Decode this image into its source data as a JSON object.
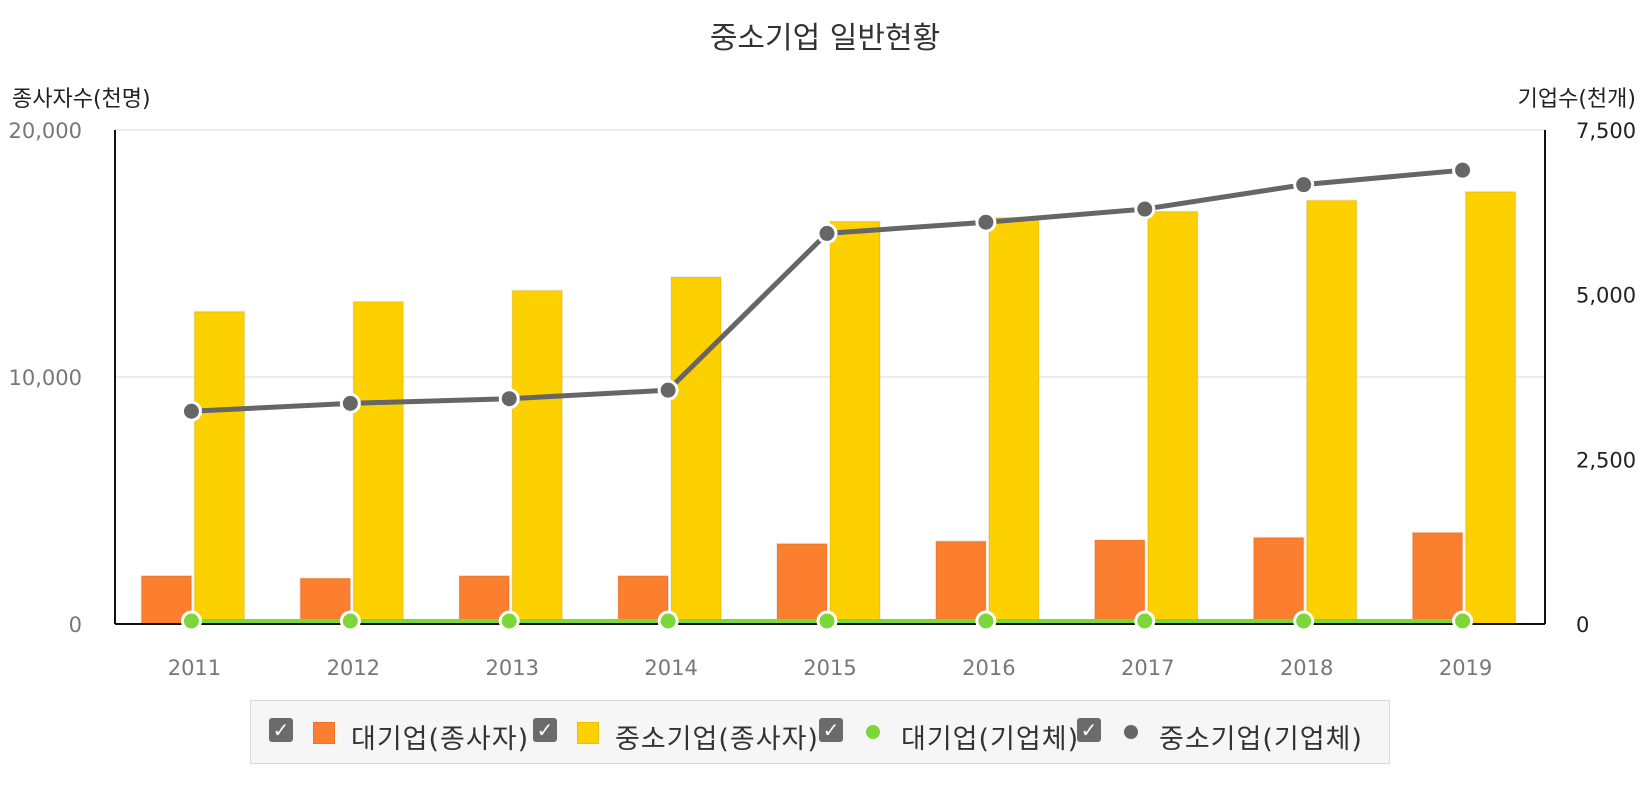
{
  "chart_data": {
    "type": "bar",
    "title": "중소기업 일반현황",
    "categories": [
      "2011",
      "2012",
      "2013",
      "2014",
      "2015",
      "2016",
      "2017",
      "2018",
      "2019"
    ],
    "left_axis": {
      "label": "종사자수(천명)",
      "ylim": [
        0,
        20000
      ],
      "ticks": [
        "0",
        "10,000",
        "20,000"
      ],
      "tick_values": [
        0,
        10000,
        20000
      ]
    },
    "right_axis": {
      "label": "기업수(천개)",
      "ylim": [
        0,
        7500
      ],
      "ticks": [
        "0",
        "2,500",
        "5,000",
        "7,500"
      ],
      "tick_values": [
        0,
        2500,
        5000,
        7500
      ]
    },
    "grid": true,
    "legend_position": "bottom",
    "series": [
      {
        "name": "대기업(종사자)",
        "type": "bar",
        "axis": "left",
        "color": "#fb7f2e",
        "values": [
          1950,
          1850,
          1950,
          1950,
          3250,
          3350,
          3400,
          3500,
          3700
        ]
      },
      {
        "name": "중소기업(종사자)",
        "type": "bar",
        "axis": "left",
        "color": "#fdd000",
        "values": [
          12650,
          13050,
          13500,
          14050,
          16300,
          16450,
          16700,
          17150,
          17500
        ]
      },
      {
        "name": "대기업(기업체)",
        "type": "line",
        "axis": "right",
        "color": "#7ed73a",
        "values": [
          3,
          3,
          4,
          4,
          4,
          4,
          4,
          4,
          4
        ]
      },
      {
        "name": "중소기업(기업체)",
        "type": "line",
        "axis": "right",
        "color": "#666666",
        "values": [
          3230,
          3350,
          3420,
          3550,
          5930,
          6100,
          6300,
          6670,
          6890
        ]
      }
    ]
  },
  "legend": {
    "items": [
      {
        "label": "대기업(종사자)",
        "checked": "✓",
        "color": "#fb7f2e",
        "shape": "square"
      },
      {
        "label": "중소기업(종사자)",
        "checked": "✓",
        "color": "#fdd000",
        "shape": "square"
      },
      {
        "label": "대기업(기업체)",
        "checked": "✓",
        "color": "#7ed73a",
        "shape": "dot"
      },
      {
        "label": "중소기업(기업체)",
        "checked": "✓",
        "color": "#666666",
        "shape": "dot"
      }
    ]
  }
}
